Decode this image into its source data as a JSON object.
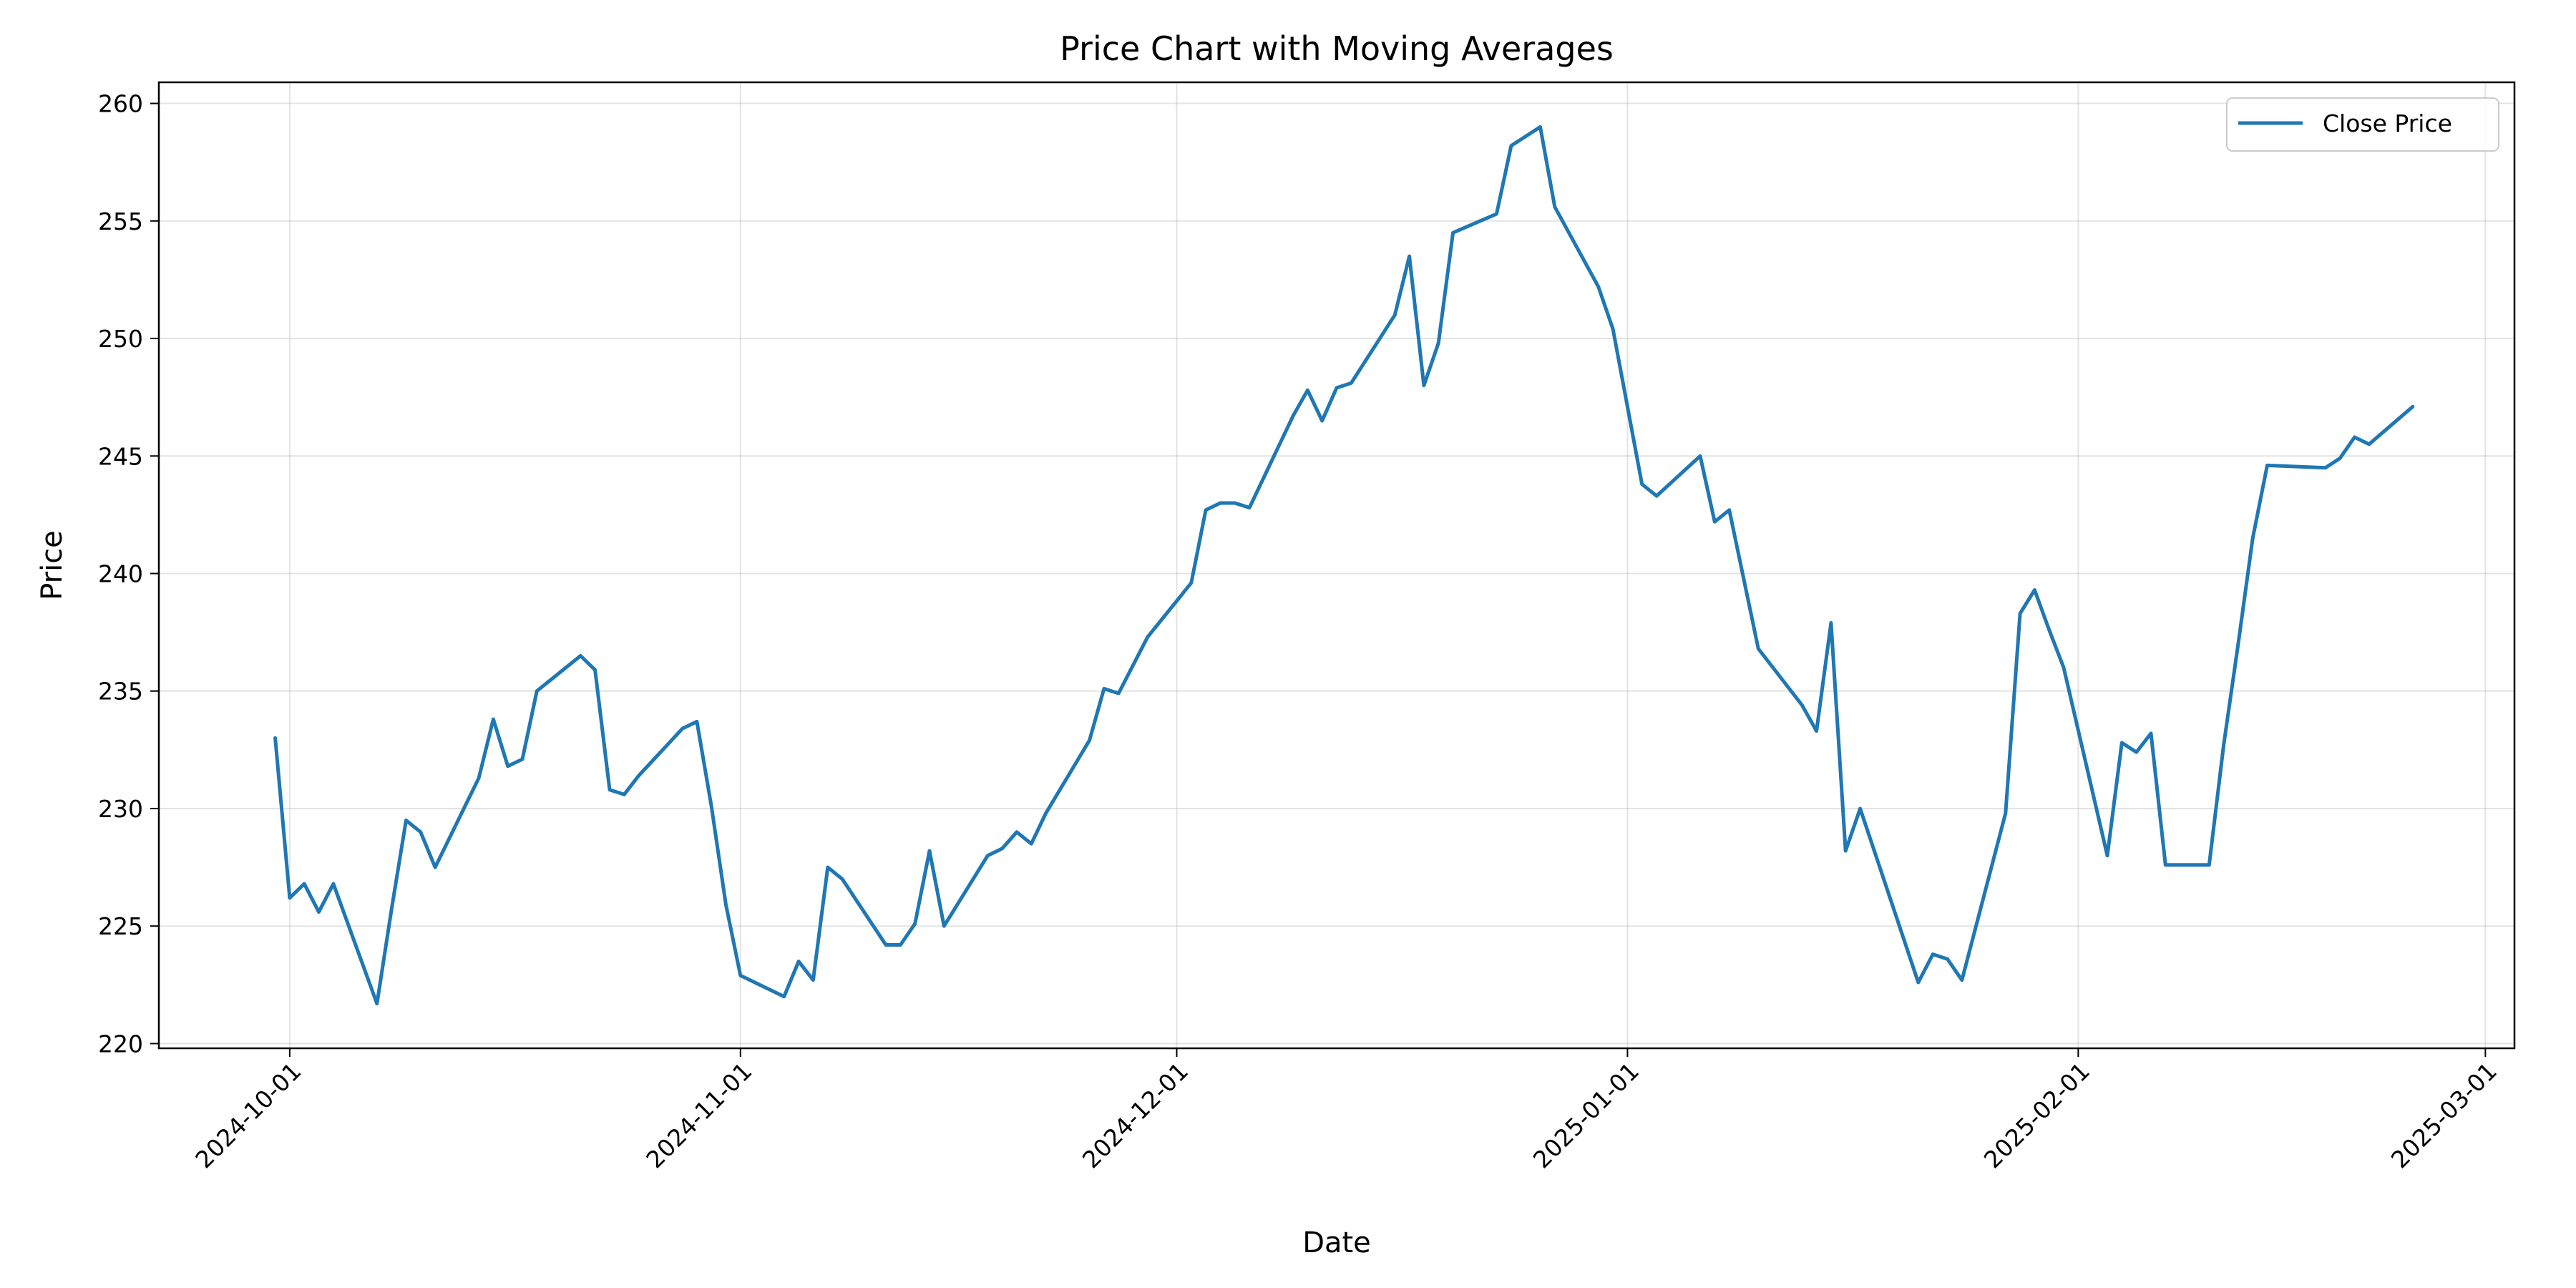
{
  "chart_data": {
    "type": "line",
    "title": "Price Chart with Moving Averages",
    "xlabel": "Date",
    "ylabel": "Price",
    "x_range": [
      "2024-09-22",
      "2025-03-03"
    ],
    "ylim": [
      219.8,
      260.9
    ],
    "x_ticks": [
      "2024-10-01",
      "2024-11-01",
      "2024-12-01",
      "2025-01-01",
      "2025-02-01",
      "2025-03-01"
    ],
    "y_ticks": [
      220,
      225,
      230,
      235,
      240,
      245,
      250,
      255,
      260
    ],
    "grid": true,
    "legend_position": "top-right",
    "series": [
      {
        "name": "Close Price",
        "color": "#1f77b4",
        "x": [
          "2024-09-30",
          "2024-10-01",
          "2024-10-02",
          "2024-10-03",
          "2024-10-04",
          "2024-10-07",
          "2024-10-08",
          "2024-10-09",
          "2024-10-10",
          "2024-10-11",
          "2024-10-14",
          "2024-10-15",
          "2024-10-16",
          "2024-10-17",
          "2024-10-18",
          "2024-10-21",
          "2024-10-22",
          "2024-10-23",
          "2024-10-24",
          "2024-10-25",
          "2024-10-28",
          "2024-10-29",
          "2024-10-30",
          "2024-10-31",
          "2024-11-01",
          "2024-11-04",
          "2024-11-05",
          "2024-11-06",
          "2024-11-07",
          "2024-11-08",
          "2024-11-11",
          "2024-11-12",
          "2024-11-13",
          "2024-11-14",
          "2024-11-15",
          "2024-11-18",
          "2024-11-19",
          "2024-11-20",
          "2024-11-21",
          "2024-11-22",
          "2024-11-25",
          "2024-11-26",
          "2024-11-27",
          "2024-11-29",
          "2024-12-02",
          "2024-12-03",
          "2024-12-04",
          "2024-12-05",
          "2024-12-06",
          "2024-12-09",
          "2024-12-10",
          "2024-12-11",
          "2024-12-12",
          "2024-12-13",
          "2024-12-16",
          "2024-12-17",
          "2024-12-18",
          "2024-12-19",
          "2024-12-20",
          "2024-12-23",
          "2024-12-24",
          "2024-12-26",
          "2024-12-27",
          "2024-12-30",
          "2024-12-31",
          "2025-01-02",
          "2025-01-03",
          "2025-01-06",
          "2025-01-07",
          "2025-01-08",
          "2025-01-10",
          "2025-01-13",
          "2025-01-14",
          "2025-01-15",
          "2025-01-16",
          "2025-01-17",
          "2025-01-21",
          "2025-01-22",
          "2025-01-23",
          "2025-01-24",
          "2025-01-27",
          "2025-01-28",
          "2025-01-29",
          "2025-01-30",
          "2025-01-31",
          "2025-02-03",
          "2025-02-04",
          "2025-02-05",
          "2025-02-06",
          "2025-02-07",
          "2025-02-10",
          "2025-02-11",
          "2025-02-12",
          "2025-02-13",
          "2025-02-14",
          "2025-02-18",
          "2025-02-19",
          "2025-02-20",
          "2025-02-21",
          "2025-02-24"
        ],
        "y": [
          233.0,
          226.2,
          226.8,
          225.6,
          226.8,
          221.7,
          225.7,
          229.5,
          229.0,
          227.5,
          231.3,
          233.8,
          231.8,
          232.1,
          235.0,
          236.5,
          235.9,
          230.8,
          230.6,
          231.4,
          233.4,
          233.7,
          230.1,
          225.9,
          222.9,
          222.0,
          223.5,
          222.7,
          227.5,
          227.0,
          224.2,
          224.2,
          225.1,
          228.2,
          225.0,
          228.0,
          228.3,
          229.0,
          228.5,
          229.8,
          232.9,
          235.1,
          234.9,
          237.3,
          239.6,
          242.7,
          243.0,
          243.0,
          242.8,
          246.7,
          247.8,
          246.5,
          247.9,
          248.1,
          251.0,
          253.5,
          248.0,
          249.8,
          254.5,
          255.3,
          258.2,
          259.0,
          255.6,
          252.2,
          250.4,
          243.8,
          243.3,
          245.0,
          242.2,
          242.7,
          236.8,
          234.4,
          233.3,
          237.9,
          228.2,
          230.0,
          222.6,
          223.8,
          223.6,
          222.7,
          229.8,
          238.3,
          239.3,
          237.6,
          236.0,
          228.0,
          232.8,
          232.4,
          233.2,
          227.6,
          227.6,
          232.7,
          237.0,
          241.5,
          244.6,
          244.5,
          244.9,
          245.8,
          245.5,
          247.1
        ]
      }
    ]
  }
}
